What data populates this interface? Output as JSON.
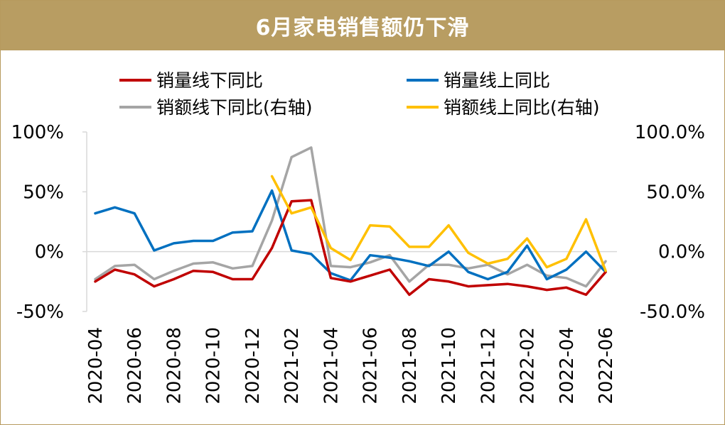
{
  "title": "6月家电销售额仍下滑",
  "chart_data": {
    "type": "line",
    "x": [
      "2020-04",
      "2020-05",
      "2020-06",
      "2020-07",
      "2020-08",
      "2020-09",
      "2020-10",
      "2020-11",
      "2020-12",
      "2021-01",
      "2021-02",
      "2021-03",
      "2021-04",
      "2021-05",
      "2021-06",
      "2021-07",
      "2021-08",
      "2021-09",
      "2021-10",
      "2021-11",
      "2021-12",
      "2022-01",
      "2022-02",
      "2022-03",
      "2022-04",
      "2022-05",
      "2022-06"
    ],
    "x_tick_labels": [
      "2020-04",
      "2020-06",
      "2020-08",
      "2020-10",
      "2020-12",
      "2021-02",
      "2021-04",
      "2021-06",
      "2021-08",
      "2021-10",
      "2021-12",
      "2022-02",
      "2022-04",
      "2022-06"
    ],
    "y_left": {
      "ylim": [
        -50,
        100
      ],
      "ticks": [
        -50,
        0,
        50,
        100
      ],
      "tick_labels": [
        "-50%",
        "0%",
        "50%",
        "100%"
      ]
    },
    "y_right": {
      "ylim": [
        -50,
        100
      ],
      "ticks": [
        -50,
        0,
        50,
        100
      ],
      "tick_labels": [
        "-50.0%",
        "0.0%",
        "50.0%",
        "100.0%"
      ]
    },
    "legend_position": "top",
    "series": [
      {
        "name": "销量线下同比",
        "axis": "left",
        "color": "#c00000",
        "values": [
          -25,
          -15,
          -19,
          -29,
          -23,
          -16,
          -17,
          -23,
          -23,
          3,
          42,
          43,
          -22,
          -25,
          -20,
          -15,
          -36,
          -23,
          -25,
          -29,
          -28,
          -27,
          -29,
          -32,
          -30,
          -36,
          -17
        ]
      },
      {
        "name": "销量线上同比",
        "axis": "left",
        "color": "#0070c0",
        "values": [
          32,
          37,
          32,
          1,
          7,
          9,
          9,
          16,
          17,
          51,
          1,
          -2,
          -18,
          -24,
          -3,
          -5,
          -8,
          -12,
          0,
          -17,
          -23,
          -17,
          5,
          -23,
          -15,
          0,
          -17
        ]
      },
      {
        "name": "销额线下同比(右轴)",
        "axis": "right",
        "color": "#a5a5a5",
        "values": [
          -23,
          -12,
          -11,
          -23,
          -16,
          -10,
          -9,
          -14,
          -12,
          26,
          79,
          87,
          -12,
          -13,
          -9,
          -3,
          -25,
          -11,
          -11,
          -14,
          -11,
          -19,
          -11,
          -20,
          -22,
          -29,
          -8
        ]
      },
      {
        "name": "销额线上同比(右轴)",
        "axis": "right",
        "color": "#ffc000",
        "values": [
          null,
          null,
          null,
          null,
          null,
          null,
          null,
          null,
          null,
          63,
          32,
          37,
          3,
          -7,
          22,
          21,
          4,
          4,
          22,
          -1,
          -10,
          -6,
          11,
          -13,
          -6,
          27,
          -16
        ]
      }
    ]
  }
}
